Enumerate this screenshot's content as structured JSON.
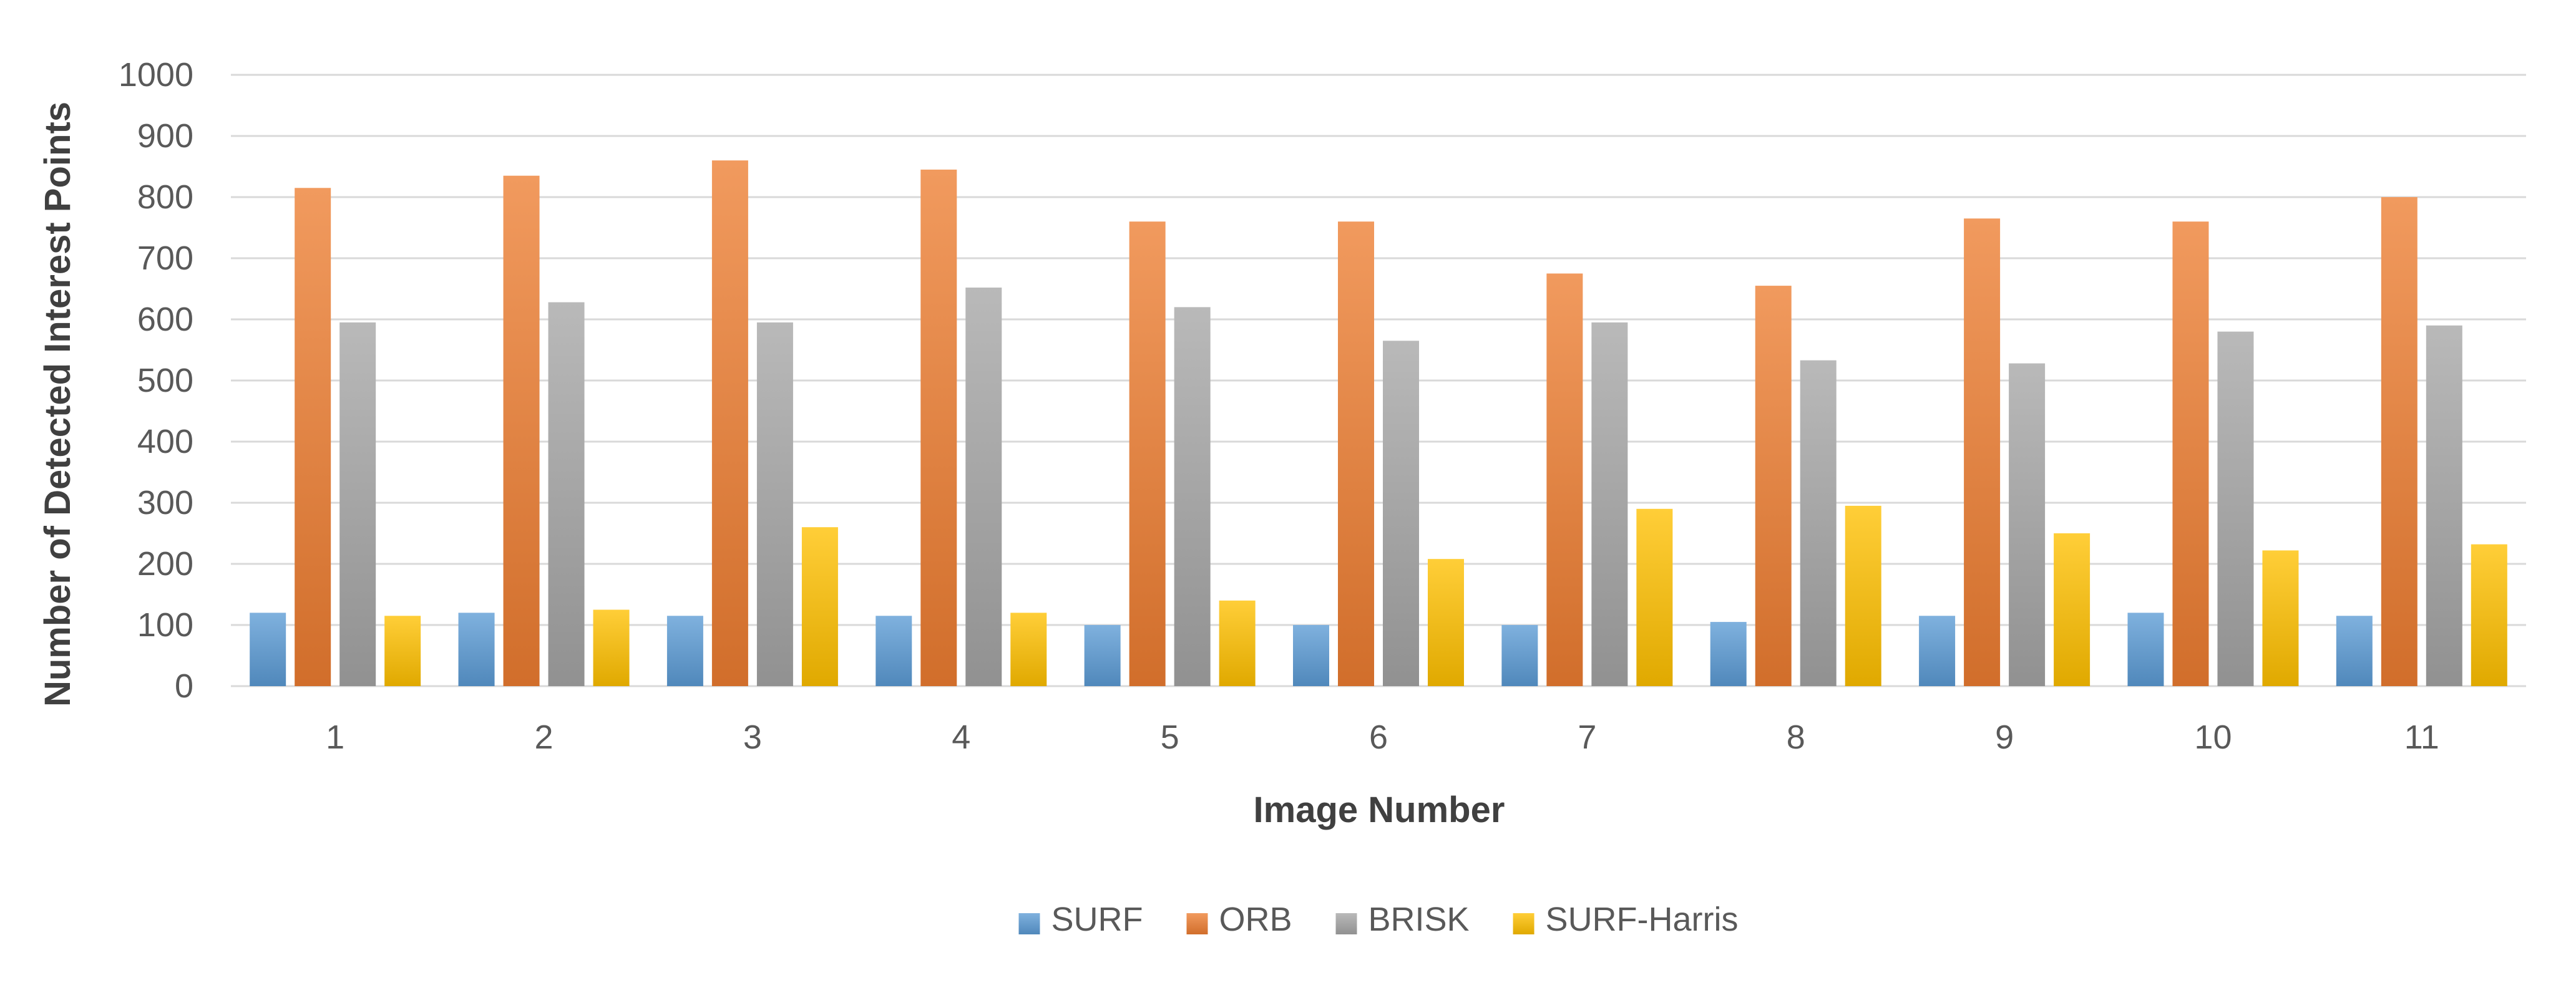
{
  "chart_data": {
    "type": "bar",
    "title": "",
    "xlabel": "Image Number",
    "ylabel": "Number of Detected Interest Points",
    "categories": [
      "1",
      "2",
      "3",
      "4",
      "5",
      "6",
      "7",
      "8",
      "9",
      "10",
      "11"
    ],
    "ylim": [
      0,
      1000
    ],
    "yticks": [
      "0",
      "100",
      "200",
      "300",
      "400",
      "500",
      "600",
      "700",
      "800",
      "900",
      "1000"
    ],
    "grid": true,
    "legend_position": "bottom",
    "series": [
      {
        "name": "SURF",
        "color": "#5B9BD5",
        "values": [
          120,
          120,
          115,
          115,
          100,
          100,
          100,
          105,
          115,
          120,
          115
        ]
      },
      {
        "name": "ORB",
        "color": "#ED7D31",
        "values": [
          815,
          835,
          860,
          845,
          760,
          760,
          675,
          655,
          765,
          760,
          800
        ]
      },
      {
        "name": "BRISK",
        "color": "#A5A5A5",
        "values": [
          595,
          628,
          595,
          652,
          620,
          565,
          595,
          533,
          528,
          580,
          590
        ]
      },
      {
        "name": "SURF-Harris",
        "color": "#FFC000",
        "values": [
          115,
          125,
          260,
          120,
          140,
          208,
          290,
          295,
          250,
          222,
          232
        ]
      }
    ]
  }
}
